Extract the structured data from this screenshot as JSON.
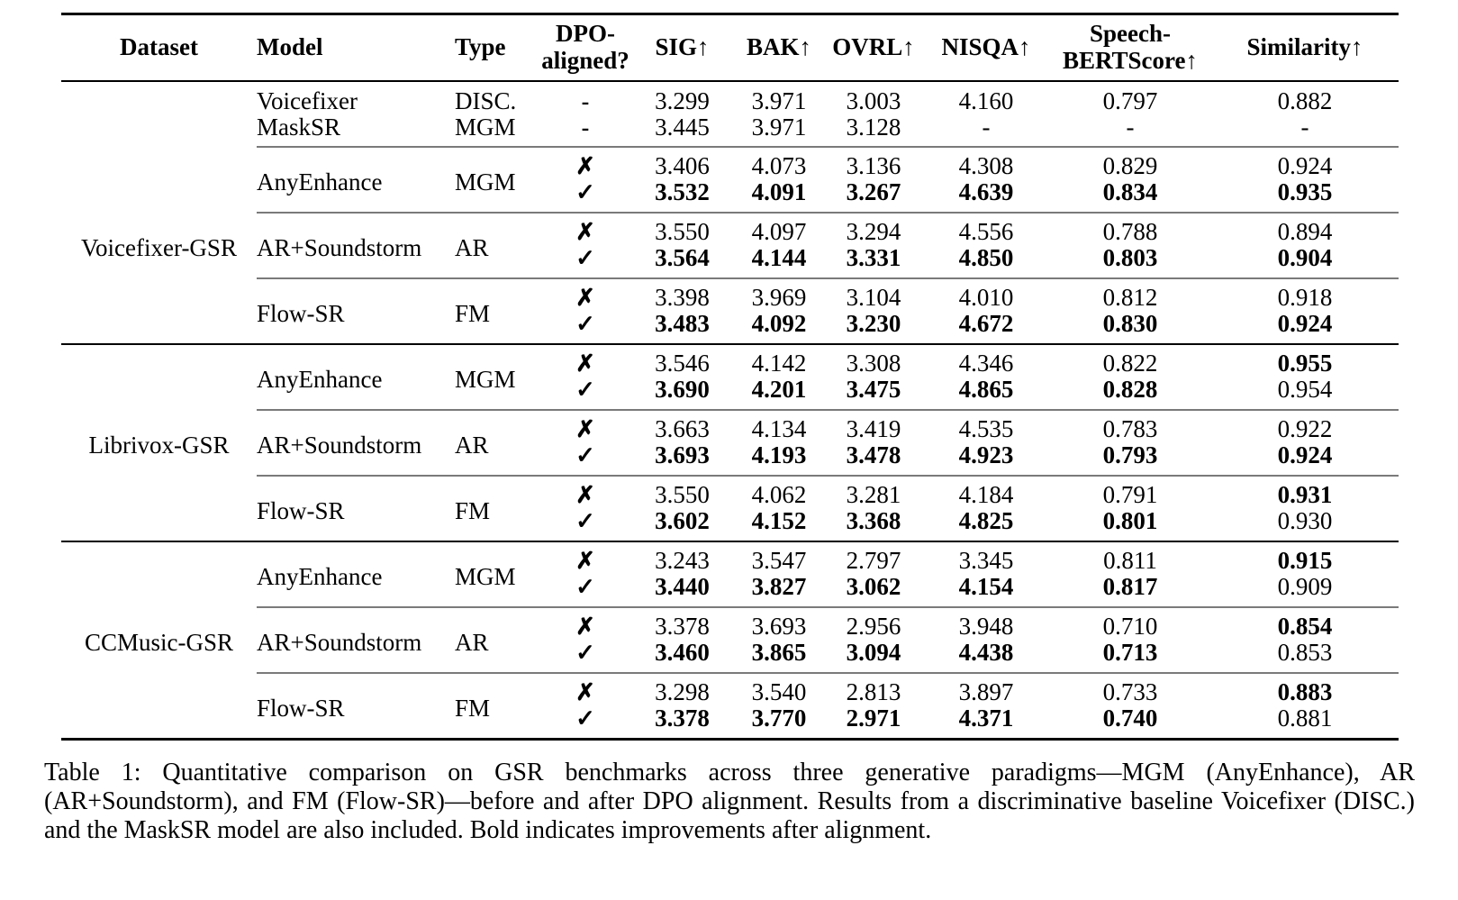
{
  "table": {
    "header": {
      "dataset": "Dataset",
      "model": "Model",
      "type": "Type",
      "dpo_line1": "DPO-",
      "dpo_line2": "aligned?",
      "sig": "SIG↑",
      "bak": "BAK↑",
      "ovrl": "OVRL↑",
      "nisqa": "NISQA↑",
      "sbs_line1": "Speech-",
      "sbs_line2": "BERTScore↑",
      "similarity": "Similarity↑"
    },
    "marks": {
      "no": "✗",
      "yes": "✓",
      "na": "-"
    },
    "baselines": [
      {
        "model": "Voicefixer",
        "type": "DISC.",
        "dpo": "-",
        "values": [
          "3.299",
          "3.971",
          "3.003",
          "4.160",
          "0.797",
          "0.882"
        ]
      },
      {
        "model": "MaskSR",
        "type": "MGM",
        "dpo": "-",
        "values": [
          "3.445",
          "3.971",
          "3.128",
          "-",
          "-",
          "-"
        ]
      }
    ],
    "sections": [
      {
        "dataset": "Voicefixer-GSR",
        "blocks": [
          {
            "model": "AnyEnhance",
            "type": "MGM",
            "no": {
              "values": [
                "3.406",
                "4.073",
                "3.136",
                "4.308",
                "0.829",
                "0.924"
              ],
              "bold": [
                0,
                0,
                0,
                0,
                0,
                0
              ]
            },
            "yes": {
              "values": [
                "3.532",
                "4.091",
                "3.267",
                "4.639",
                "0.834",
                "0.935"
              ],
              "bold": [
                1,
                1,
                1,
                1,
                1,
                1
              ]
            }
          },
          {
            "model": "AR+Soundstorm",
            "type": "AR",
            "no": {
              "values": [
                "3.550",
                "4.097",
                "3.294",
                "4.556",
                "0.788",
                "0.894"
              ],
              "bold": [
                0,
                0,
                0,
                0,
                0,
                0
              ]
            },
            "yes": {
              "values": [
                "3.564",
                "4.144",
                "3.331",
                "4.850",
                "0.803",
                "0.904"
              ],
              "bold": [
                1,
                1,
                1,
                1,
                1,
                1
              ]
            }
          },
          {
            "model": "Flow-SR",
            "type": "FM",
            "no": {
              "values": [
                "3.398",
                "3.969",
                "3.104",
                "4.010",
                "0.812",
                "0.918"
              ],
              "bold": [
                0,
                0,
                0,
                0,
                0,
                0
              ]
            },
            "yes": {
              "values": [
                "3.483",
                "4.092",
                "3.230",
                "4.672",
                "0.830",
                "0.924"
              ],
              "bold": [
                1,
                1,
                1,
                1,
                1,
                1
              ]
            }
          }
        ]
      },
      {
        "dataset": "Librivox-GSR",
        "blocks": [
          {
            "model": "AnyEnhance",
            "type": "MGM",
            "no": {
              "values": [
                "3.546",
                "4.142",
                "3.308",
                "4.346",
                "0.822",
                "0.955"
              ],
              "bold": [
                0,
                0,
                0,
                0,
                0,
                1
              ]
            },
            "yes": {
              "values": [
                "3.690",
                "4.201",
                "3.475",
                "4.865",
                "0.828",
                "0.954"
              ],
              "bold": [
                1,
                1,
                1,
                1,
                1,
                0
              ]
            }
          },
          {
            "model": "AR+Soundstorm",
            "type": "AR",
            "no": {
              "values": [
                "3.663",
                "4.134",
                "3.419",
                "4.535",
                "0.783",
                "0.922"
              ],
              "bold": [
                0,
                0,
                0,
                0,
                0,
                0
              ]
            },
            "yes": {
              "values": [
                "3.693",
                "4.193",
                "3.478",
                "4.923",
                "0.793",
                "0.924"
              ],
              "bold": [
                1,
                1,
                1,
                1,
                1,
                1
              ]
            }
          },
          {
            "model": "Flow-SR",
            "type": "FM",
            "no": {
              "values": [
                "3.550",
                "4.062",
                "3.281",
                "4.184",
                "0.791",
                "0.931"
              ],
              "bold": [
                0,
                0,
                0,
                0,
                0,
                1
              ]
            },
            "yes": {
              "values": [
                "3.602",
                "4.152",
                "3.368",
                "4.825",
                "0.801",
                "0.930"
              ],
              "bold": [
                1,
                1,
                1,
                1,
                1,
                0
              ]
            }
          }
        ]
      },
      {
        "dataset": "CCMusic-GSR",
        "blocks": [
          {
            "model": "AnyEnhance",
            "type": "MGM",
            "no": {
              "values": [
                "3.243",
                "3.547",
                "2.797",
                "3.345",
                "0.811",
                "0.915"
              ],
              "bold": [
                0,
                0,
                0,
                0,
                0,
                1
              ]
            },
            "yes": {
              "values": [
                "3.440",
                "3.827",
                "3.062",
                "4.154",
                "0.817",
                "0.909"
              ],
              "bold": [
                1,
                1,
                1,
                1,
                1,
                0
              ]
            }
          },
          {
            "model": "AR+Soundstorm",
            "type": "AR",
            "no": {
              "values": [
                "3.378",
                "3.693",
                "2.956",
                "3.948",
                "0.710",
                "0.854"
              ],
              "bold": [
                0,
                0,
                0,
                0,
                0,
                1
              ]
            },
            "yes": {
              "values": [
                "3.460",
                "3.865",
                "3.094",
                "4.438",
                "0.713",
                "0.853"
              ],
              "bold": [
                1,
                1,
                1,
                1,
                1,
                0
              ]
            }
          },
          {
            "model": "Flow-SR",
            "type": "FM",
            "no": {
              "values": [
                "3.298",
                "3.540",
                "2.813",
                "3.897",
                "0.733",
                "0.883"
              ],
              "bold": [
                0,
                0,
                0,
                0,
                0,
                1
              ]
            },
            "yes": {
              "values": [
                "3.378",
                "3.770",
                "2.971",
                "4.371",
                "0.740",
                "0.881"
              ],
              "bold": [
                1,
                1,
                1,
                1,
                1,
                0
              ]
            }
          }
        ]
      }
    ]
  },
  "caption": "Table 1: Quantitative comparison on GSR benchmarks across three generative paradigms—MGM (AnyEnhance), AR (AR+Soundstorm), and FM (Flow-SR)—before and after DPO alignment. Results from a discriminative baseline Voicefixer (DISC.) and the MaskSR model are also included. Bold indicates improvements after alignment."
}
